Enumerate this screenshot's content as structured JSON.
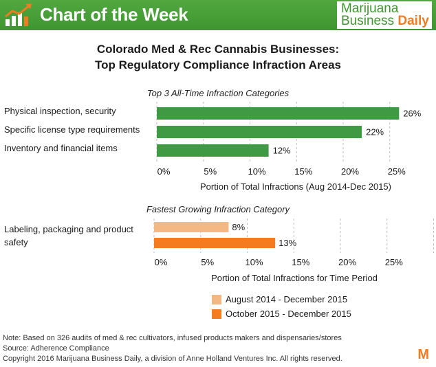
{
  "header": {
    "title": "Chart of the Week",
    "brand_line1": "Marijuana",
    "brand_line2a": "Business ",
    "brand_line2b": "Daily",
    "header_color": "#47a036",
    "accent_orange": "#f07c22"
  },
  "title_line1": "Colorado Med & Rec Cannabis Businesses:",
  "title_line2": "Top Regulatory Compliance Infraction Areas",
  "chart_data": [
    {
      "type": "bar",
      "orientation": "horizontal",
      "title": "Top 3 All-Time Infraction Categories",
      "xlabel": "Portion of Total Infractions (Aug 2014-Dec 2015)",
      "categories": [
        "Physical inspection, security",
        "Specific license type requirements",
        "Inventory and financial items"
      ],
      "values": [
        26,
        22,
        12
      ],
      "value_labels": [
        "26%",
        "22%",
        "12%"
      ],
      "color": "#3f9a43",
      "xlim": [
        0,
        30
      ],
      "ticks": [
        0,
        5,
        10,
        15,
        20,
        25
      ],
      "tick_labels": [
        "0%",
        "5%",
        "10%",
        "15%",
        "20%",
        "25%"
      ],
      "grid": "vertical dashed"
    },
    {
      "type": "bar",
      "orientation": "horizontal",
      "title": "Fastest Growing Infraction Category",
      "xlabel": "Portion of Total Infractions for Time Period",
      "categories": [
        "Labeling, packaging and product safety"
      ],
      "series": [
        {
          "name": "August 2014 - December 2015",
          "values": [
            8
          ],
          "value_labels": [
            "8%"
          ],
          "color": "#f4b884"
        },
        {
          "name": "October 2015 - December 2015",
          "values": [
            13
          ],
          "value_labels": [
            "13%"
          ],
          "color": "#f47b20"
        }
      ],
      "xlim": [
        0,
        30
      ],
      "ticks": [
        0,
        5,
        10,
        15,
        20,
        25
      ],
      "tick_labels": [
        "0%",
        "5%",
        "10%",
        "15%",
        "20%",
        "25%"
      ],
      "grid": "vertical dashed",
      "legend_position": "bottom"
    }
  ],
  "label_labeling_line1": "Labeling, packaging and product",
  "label_labeling_line2": "safety",
  "footer": {
    "note": "Note: Based on 326 audits of med & rec cultivators, infused products makers and dispensaries/stores",
    "source": "Source: Adherence Compliance",
    "copyright": "Copyright 2016 Marijuana Business Daily, a division of Anne Holland Ventures Inc. All rights reserved.",
    "m_logo": "M"
  }
}
